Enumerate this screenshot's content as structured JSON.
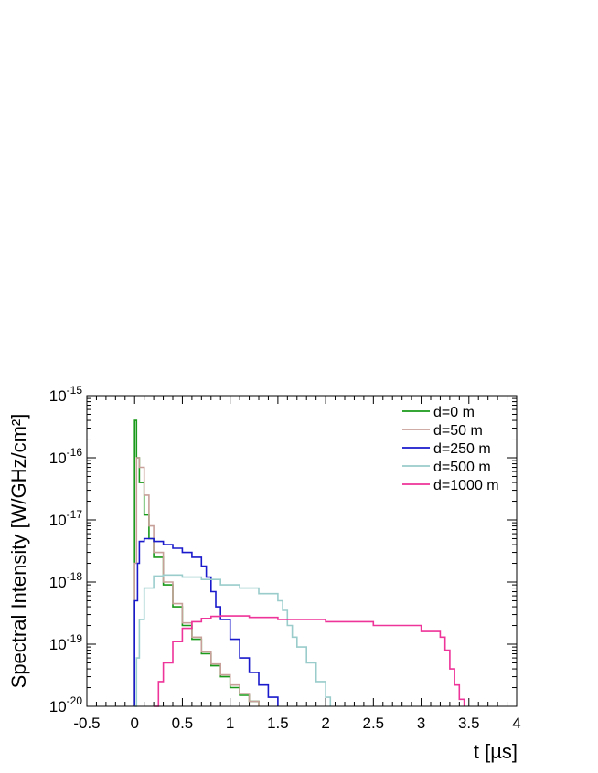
{
  "chart_data": {
    "type": "line",
    "xlabel": "t [µs]",
    "ylabel": "Spectral Intensity [W/GHz/cm²]",
    "xlim": [
      -0.5,
      4
    ],
    "ylim": [
      1e-20,
      1e-15
    ],
    "log_y": true,
    "grid": false,
    "legend_position": "top-right",
    "x_ticks": [
      "-0.5",
      "0",
      "0.5",
      "1",
      "1.5",
      "2",
      "2.5",
      "3",
      "3.5",
      "4"
    ],
    "y_ticks": [
      {
        "base": "10",
        "exp": "-20"
      },
      {
        "base": "10",
        "exp": "-19"
      },
      {
        "base": "10",
        "exp": "-18"
      },
      {
        "base": "10",
        "exp": "-17"
      },
      {
        "base": "10",
        "exp": "-16"
      },
      {
        "base": "10",
        "exp": "-15"
      }
    ],
    "series": [
      {
        "name": "d=0 m",
        "color": "#1a9a1a",
        "x": [
          0.0,
          0.02,
          0.05,
          0.1,
          0.15,
          0.2,
          0.3,
          0.4,
          0.5,
          0.6,
          0.7,
          0.8,
          0.9,
          1.0,
          1.1,
          1.2,
          1.3
        ],
        "y": [
          4e-16,
          1e-16,
          4e-17,
          1.2e-17,
          5e-18,
          2.5e-18,
          9e-19,
          4e-19,
          2e-19,
          1.2e-19,
          7e-20,
          4.5e-20,
          3e-20,
          2e-20,
          1.5e-20,
          1.2e-20,
          1e-20
        ]
      },
      {
        "name": "d=50 m",
        "color": "#c8a09a",
        "x": [
          0.0,
          0.02,
          0.05,
          0.1,
          0.15,
          0.2,
          0.3,
          0.4,
          0.5,
          0.6,
          0.7,
          0.8,
          0.9,
          1.0,
          1.1,
          1.2,
          1.3
        ],
        "y": [
          2e-18,
          1e-16,
          7e-17,
          2.5e-17,
          8e-18,
          3e-18,
          1e-18,
          4.5e-19,
          2.2e-19,
          1.3e-19,
          7.5e-20,
          4.8e-20,
          3.2e-20,
          2.2e-20,
          1.6e-20,
          1.2e-20,
          1e-20
        ]
      },
      {
        "name": "d=250 m",
        "color": "#1a1acc",
        "x": [
          0.0,
          0.03,
          0.05,
          0.1,
          0.2,
          0.3,
          0.4,
          0.5,
          0.6,
          0.7,
          0.75,
          0.8,
          0.85,
          0.9,
          1.0,
          1.1,
          1.2,
          1.3,
          1.4,
          1.5
        ],
        "y": [
          5e-19,
          2e-18,
          4.5e-18,
          5e-18,
          4.5e-18,
          4e-18,
          3.5e-18,
          3e-18,
          2.5e-18,
          1.8e-18,
          1.2e-18,
          7e-19,
          4e-19,
          2.5e-19,
          1.2e-19,
          6e-20,
          3.5e-20,
          2.2e-20,
          1.4e-20,
          1e-20
        ]
      },
      {
        "name": "d=500 m",
        "color": "#9acccc",
        "x": [
          0.0,
          0.02,
          0.05,
          0.1,
          0.2,
          0.3,
          0.5,
          0.7,
          0.9,
          1.1,
          1.3,
          1.5,
          1.55,
          1.6,
          1.65,
          1.7,
          1.8,
          1.9,
          2.0,
          2.05
        ],
        "y": [
          1e-20,
          6e-20,
          2.5e-19,
          8e-19,
          1.25e-18,
          1.3e-18,
          1.2e-18,
          1.1e-18,
          9e-19,
          8e-19,
          6.5e-19,
          5e-19,
          3.5e-19,
          2e-19,
          1.3e-19,
          9e-20,
          5e-20,
          2.5e-20,
          1.4e-20,
          1e-20
        ]
      },
      {
        "name": "d=1000 m",
        "color": "#ee3399",
        "x": [
          0.2,
          0.25,
          0.3,
          0.4,
          0.5,
          0.6,
          0.7,
          0.8,
          0.9,
          1.2,
          1.5,
          2.0,
          2.5,
          3.0,
          3.2,
          3.25,
          3.3,
          3.35,
          3.4,
          3.45
        ],
        "y": [
          1e-20,
          2.5e-20,
          5e-20,
          1.1e-19,
          1.8e-19,
          2.3e-19,
          2.6e-19,
          2.8e-19,
          2.85e-19,
          2.7e-19,
          2.5e-19,
          2.3e-19,
          2e-19,
          1.6e-19,
          1.3e-19,
          8e-20,
          4e-20,
          2.2e-20,
          1.3e-20,
          1e-20
        ]
      }
    ]
  }
}
